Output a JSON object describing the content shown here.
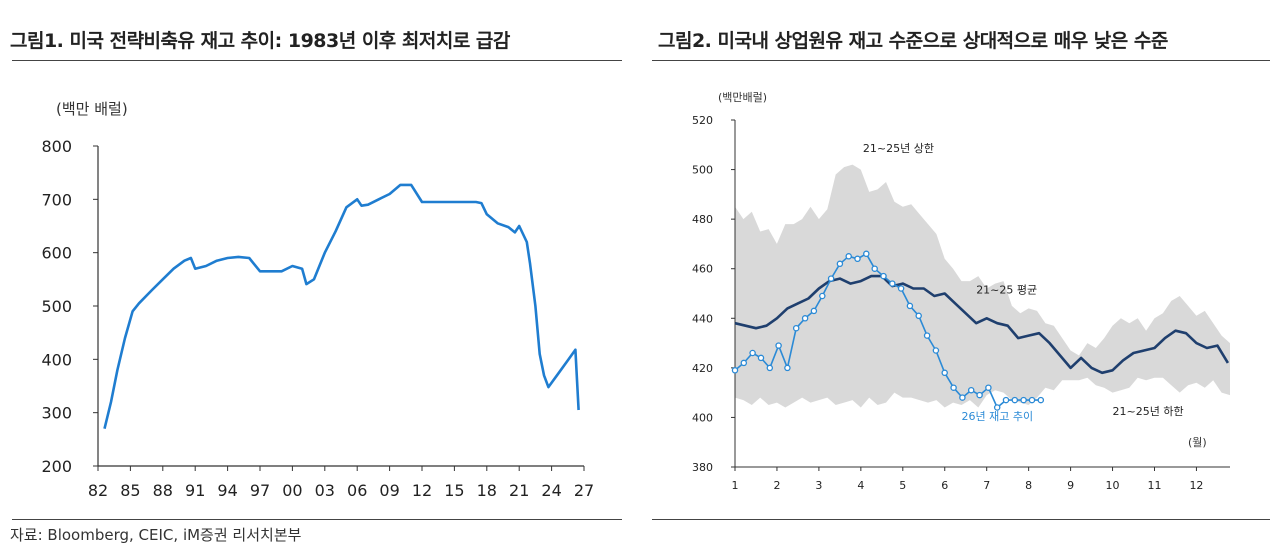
{
  "source": "자료: Bloomberg, CEIC, iM증권 리서치본부",
  "chart_data": [
    {
      "type": "line",
      "title": "그림1.  미국 전략비축유 재고 추이: 1983년 이후 최저치로 급감",
      "ylabel": "(백만 배럴)",
      "ylim": [
        200,
        800
      ],
      "yticks": [
        "200",
        "300",
        "400",
        "500",
        "600",
        "700",
        "800"
      ],
      "xlim": [
        1982,
        2027
      ],
      "xticks": [
        "82",
        "85",
        "88",
        "91",
        "94",
        "97",
        "00",
        "03",
        "06",
        "09",
        "12",
        "15",
        "18",
        "21",
        "24",
        "27"
      ],
      "grid": false,
      "series": [
        {
          "color": "#1f7dd0",
          "x": [
            1982.6,
            1983.2,
            1983.8,
            1984.5,
            1985.2,
            1985.8,
            1987,
            1988,
            1989,
            1990,
            1990.6,
            1991,
            1992,
            1993,
            1994,
            1995,
            1996,
            1997,
            1998,
            1999,
            2000,
            2000.9,
            2001.3,
            2002,
            2003,
            2004,
            2005,
            2006,
            2006.4,
            2007,
            2008,
            2009,
            2010,
            2011,
            2012,
            2013,
            2014,
            2015,
            2016,
            2017,
            2017.5,
            2018,
            2019,
            2020,
            2020.6,
            2021,
            2021.7,
            2022,
            2022.5,
            2022.9,
            2023.3,
            2023.7,
            2024.5,
            2025.5,
            2026.2,
            2026.5
          ],
          "y": [
            270,
            320,
            380,
            440,
            490,
            505,
            530,
            550,
            570,
            585,
            590,
            570,
            575,
            585,
            590,
            592,
            590,
            565,
            565,
            565,
            575,
            570,
            541,
            550,
            600,
            640,
            685,
            700,
            688,
            690,
            700,
            710,
            727,
            727,
            695,
            695,
            695,
            695,
            695,
            695,
            693,
            672,
            655,
            648,
            638,
            650,
            620,
            580,
            500,
            410,
            370,
            348,
            370,
            398,
            418,
            305
          ]
        }
      ]
    },
    {
      "type": "line",
      "title": "그림2.  미국내 상업원유 재고 수준으로 상대적으로 매우 낮은 수준",
      "ylabel": "(백만배럴)",
      "xlabel": "(월)",
      "ylim": [
        380,
        520
      ],
      "yticks": [
        "380",
        "400",
        "420",
        "440",
        "460",
        "480",
        "500",
        "520"
      ],
      "xlim": [
        1,
        12.8
      ],
      "xticks": [
        "1",
        "2",
        "3",
        "4",
        "5",
        "6",
        "7",
        "8",
        "9",
        "10",
        "11",
        "12"
      ],
      "grid": false,
      "band": {
        "name": "21~25년 상한 / 21~25년 하한",
        "color": "#d9d9d9",
        "x": [
          1,
          1.2,
          1.4,
          1.6,
          1.8,
          2,
          2.2,
          2.4,
          2.6,
          2.8,
          3,
          3.2,
          3.4,
          3.6,
          3.8,
          4,
          4.2,
          4.4,
          4.6,
          4.8,
          5,
          5.2,
          5.4,
          5.6,
          5.8,
          6,
          6.2,
          6.4,
          6.6,
          6.8,
          7,
          7.2,
          7.4,
          7.6,
          7.8,
          8,
          8.2,
          8.4,
          8.6,
          8.8,
          9,
          9.2,
          9.4,
          9.6,
          9.8,
          10,
          10.2,
          10.4,
          10.6,
          10.8,
          11,
          11.2,
          11.4,
          11.6,
          11.8,
          12,
          12.2,
          12.4,
          12.6,
          12.8
        ],
        "upper": [
          485,
          480,
          483,
          475,
          476,
          470,
          478,
          478,
          480,
          485,
          480,
          484,
          498,
          501,
          502,
          500,
          491,
          492,
          495,
          487,
          485,
          486,
          482,
          478,
          474,
          464,
          460,
          455,
          455,
          457,
          452,
          454,
          455,
          445,
          442,
          444,
          443,
          438,
          437,
          432,
          427,
          425,
          430,
          428,
          432,
          437,
          440,
          438,
          440,
          435,
          440,
          442,
          447,
          449,
          445,
          441,
          443,
          438,
          433,
          430
        ],
        "lower": [
          408,
          407,
          405,
          408,
          405,
          406,
          404,
          406,
          408,
          406,
          407,
          408,
          405,
          406,
          407,
          404,
          408,
          405,
          406,
          410,
          408,
          408,
          407,
          406,
          407,
          404,
          406,
          405,
          407,
          404,
          409,
          411,
          410,
          407,
          406,
          405,
          408,
          412,
          411,
          415,
          415,
          415,
          416,
          413,
          412,
          410,
          411,
          412,
          416,
          415,
          416,
          416,
          413,
          410,
          413,
          414,
          412,
          415,
          410,
          409
        ]
      },
      "annotations": [
        {
          "text": "21~25년 상한",
          "x": 4.05,
          "y": 507
        },
        {
          "text": "21~25 평균",
          "x": 6.75,
          "y": 450
        },
        {
          "text": "21~25년 하한",
          "x": 10.0,
          "y": 401
        },
        {
          "text": "26년 재고 추이",
          "x": 6.4,
          "y": 399
        }
      ],
      "series": [
        {
          "name": "21~25 평균",
          "color": "#1f3f6e",
          "x": [
            1,
            1.25,
            1.5,
            1.75,
            2,
            2.25,
            2.5,
            2.75,
            3,
            3.25,
            3.5,
            3.75,
            4,
            4.25,
            4.5,
            4.75,
            5,
            5.25,
            5.5,
            5.75,
            6,
            6.25,
            6.5,
            6.75,
            7,
            7.25,
            7.5,
            7.75,
            8,
            8.25,
            8.5,
            8.75,
            9,
            9.25,
            9.5,
            9.75,
            10,
            10.25,
            10.5,
            10.75,
            11,
            11.25,
            11.5,
            11.75,
            12,
            12.25,
            12.5,
            12.75
          ],
          "y": [
            438,
            437,
            436,
            437,
            440,
            444,
            446,
            448,
            452,
            455,
            456,
            454,
            455,
            457,
            457,
            453,
            454,
            452,
            452,
            449,
            450,
            446,
            442,
            438,
            440,
            438,
            437,
            432,
            433,
            434,
            430,
            425,
            420,
            424,
            420,
            418,
            419,
            423,
            426,
            427,
            428,
            432,
            435,
            434,
            430,
            428,
            429,
            422
          ]
        },
        {
          "name": "26년 재고 추이",
          "color": "#2b8ad6",
          "x": [
            1,
            1.21,
            1.42,
            1.62,
            1.83,
            2.04,
            2.25,
            2.46,
            2.67,
            2.88,
            3.08,
            3.29,
            3.5,
            3.71,
            3.92,
            4.13,
            4.33,
            4.54,
            4.75,
            4.96,
            5.17,
            5.38,
            5.58,
            5.79,
            6,
            6.21,
            6.42,
            6.63,
            6.83,
            7.04,
            7.25,
            7.46,
            7.67,
            7.88,
            8.08,
            8.29
          ],
          "y": [
            419,
            422,
            426,
            424,
            420,
            429,
            420,
            436,
            440,
            443,
            449,
            456,
            462,
            465,
            464,
            466,
            460,
            457,
            454,
            452,
            445,
            441,
            433,
            427,
            418,
            412,
            408,
            411,
            409,
            412,
            404,
            407,
            407,
            407,
            407,
            407
          ]
        }
      ]
    }
  ]
}
